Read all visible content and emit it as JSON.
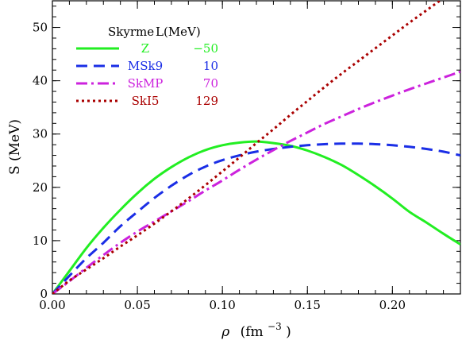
{
  "chart_data": {
    "type": "line",
    "xlabel_symbol": "ρ",
    "xlabel_unit": "(fm",
    "xlabel_exp": "−3",
    "xlabel_close": ")",
    "ylabel": "S (MeV)",
    "xlim": [
      0,
      0.24
    ],
    "ylim": [
      0,
      55
    ],
    "x_ticks": [
      "0.00",
      "0.05",
      "0.10",
      "0.15",
      "0.20"
    ],
    "x_tick_values": [
      0,
      0.05,
      0.1,
      0.15,
      0.2
    ],
    "y_ticks": [
      "0",
      "10",
      "20",
      "30",
      "40",
      "50"
    ],
    "y_tick_values": [
      0,
      10,
      20,
      30,
      40,
      50
    ],
    "grid": false,
    "legend_position": "top-left",
    "legend_header": {
      "name": "Skyrme",
      "value": "L(MeV)"
    },
    "series": [
      {
        "name": "Z",
        "L": "−50",
        "color": "#22ee22",
        "style": "solid",
        "x": [
          0,
          0.01,
          0.02,
          0.03,
          0.04,
          0.05,
          0.06,
          0.07,
          0.08,
          0.09,
          0.1,
          0.11,
          0.12,
          0.13,
          0.14,
          0.15,
          0.16,
          0.17,
          0.18,
          0.19,
          0.2,
          0.21,
          0.22,
          0.23,
          0.24
        ],
        "y": [
          0,
          4.3,
          8.6,
          12.4,
          15.8,
          18.9,
          21.6,
          23.8,
          25.6,
          27.0,
          27.9,
          28.4,
          28.6,
          28.3,
          27.8,
          26.9,
          25.7,
          24.2,
          22.3,
          20.2,
          17.9,
          15.4,
          13.4,
          11.3,
          9.3
        ]
      },
      {
        "name": "MSk9",
        "L": "10",
        "color": "#1a2ee6",
        "style": "dashed",
        "x": [
          0,
          0.01,
          0.02,
          0.03,
          0.04,
          0.05,
          0.06,
          0.07,
          0.08,
          0.09,
          0.1,
          0.11,
          0.12,
          0.13,
          0.14,
          0.15,
          0.16,
          0.17,
          0.18,
          0.19,
          0.2,
          0.21,
          0.22,
          0.23,
          0.24
        ],
        "y": [
          0,
          3.4,
          6.7,
          9.6,
          12.7,
          15.4,
          18.0,
          20.3,
          22.3,
          23.9,
          25.1,
          26.0,
          26.7,
          27.2,
          27.6,
          27.9,
          28.1,
          28.2,
          28.2,
          28.1,
          27.9,
          27.6,
          27.2,
          26.7,
          26.0
        ]
      },
      {
        "name": "SkMP",
        "L": "70",
        "color": "#cc22dd",
        "style": "dashdot",
        "x": [
          0,
          0.01,
          0.02,
          0.03,
          0.04,
          0.05,
          0.06,
          0.07,
          0.08,
          0.09,
          0.1,
          0.11,
          0.12,
          0.13,
          0.14,
          0.15,
          0.16,
          0.17,
          0.18,
          0.19,
          0.2,
          0.21,
          0.22,
          0.23,
          0.24
        ],
        "y": [
          0,
          2.4,
          4.9,
          7.3,
          9.6,
          11.7,
          13.6,
          15.5,
          17.4,
          19.4,
          21.3,
          23.3,
          25.2,
          27.0,
          28.7,
          30.3,
          31.9,
          33.3,
          34.7,
          36.0,
          37.2,
          38.4,
          39.5,
          40.6,
          41.7
        ]
      },
      {
        "name": "SkI5",
        "L": "129",
        "color": "#aa0000",
        "style": "dotted",
        "x": [
          0,
          0.01,
          0.02,
          0.03,
          0.04,
          0.05,
          0.06,
          0.07,
          0.08,
          0.09,
          0.1,
          0.11,
          0.12,
          0.13,
          0.14,
          0.15,
          0.16,
          0.17,
          0.18,
          0.19,
          0.2,
          0.21,
          0.22,
          0.23,
          0.24
        ],
        "y": [
          0,
          2.5,
          4.6,
          6.7,
          8.9,
          11.0,
          13.2,
          15.5,
          17.9,
          20.4,
          23.0,
          25.6,
          28.3,
          30.9,
          33.6,
          36.2,
          38.8,
          41.3,
          43.7,
          46.1,
          48.5,
          50.9,
          53.2,
          55.5,
          57.8
        ]
      }
    ]
  }
}
